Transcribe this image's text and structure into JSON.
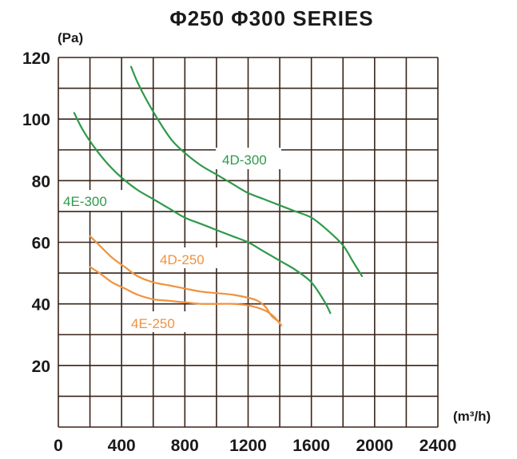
{
  "chart_data": {
    "type": "line",
    "title": "Φ250  Φ300  SERIES",
    "ylabel": "(Pa)",
    "xlabel": "(m³/h)",
    "xlim": [
      0,
      2400
    ],
    "ylim": [
      0,
      120
    ],
    "x_ticks": [
      "0",
      "400",
      "800",
      "1200",
      "1600",
      "2000",
      "2400"
    ],
    "y_ticks": [
      "20",
      "40",
      "60",
      "80",
      "100",
      "120"
    ],
    "grid": true,
    "series": [
      {
        "name": "4D-300",
        "color": "#2e9a4a",
        "points": [
          [
            460,
            117
          ],
          [
            500,
            112
          ],
          [
            560,
            106
          ],
          [
            640,
            99
          ],
          [
            720,
            93
          ],
          [
            800,
            89
          ],
          [
            900,
            85
          ],
          [
            1000,
            82
          ],
          [
            1100,
            79
          ],
          [
            1200,
            76
          ],
          [
            1300,
            74
          ],
          [
            1400,
            72
          ],
          [
            1500,
            70
          ],
          [
            1600,
            68
          ],
          [
            1700,
            64
          ],
          [
            1800,
            59
          ],
          [
            1860,
            54
          ],
          [
            1920,
            49
          ]
        ]
      },
      {
        "name": "4E-300",
        "color": "#2e9a4a",
        "points": [
          [
            100,
            102
          ],
          [
            160,
            96
          ],
          [
            240,
            90
          ],
          [
            320,
            85
          ],
          [
            400,
            81
          ],
          [
            500,
            77
          ],
          [
            600,
            74
          ],
          [
            700,
            71
          ],
          [
            800,
            68
          ],
          [
            900,
            66
          ],
          [
            1000,
            64
          ],
          [
            1100,
            62
          ],
          [
            1200,
            60
          ],
          [
            1300,
            57
          ],
          [
            1400,
            54
          ],
          [
            1500,
            51
          ],
          [
            1600,
            47
          ],
          [
            1680,
            41
          ],
          [
            1720,
            37
          ]
        ]
      },
      {
        "name": "4D-250",
        "color": "#f0923e",
        "points": [
          [
            200,
            62
          ],
          [
            260,
            59
          ],
          [
            340,
            55
          ],
          [
            420,
            52
          ],
          [
            500,
            49
          ],
          [
            600,
            47
          ],
          [
            700,
            46
          ],
          [
            800,
            45
          ],
          [
            900,
            44
          ],
          [
            1000,
            43.5
          ],
          [
            1100,
            43
          ],
          [
            1200,
            42
          ],
          [
            1260,
            41
          ],
          [
            1310,
            39
          ],
          [
            1350,
            36
          ],
          [
            1400,
            34
          ]
        ]
      },
      {
        "name": "4E-250",
        "color": "#f0923e",
        "points": [
          [
            200,
            52
          ],
          [
            260,
            50
          ],
          [
            340,
            47
          ],
          [
            420,
            45
          ],
          [
            500,
            43
          ],
          [
            600,
            41.5
          ],
          [
            700,
            41
          ],
          [
            800,
            40.5
          ],
          [
            900,
            40
          ],
          [
            1000,
            40
          ],
          [
            1100,
            40
          ],
          [
            1200,
            39.5
          ],
          [
            1300,
            38
          ],
          [
            1360,
            36
          ],
          [
            1410,
            33
          ]
        ]
      }
    ],
    "labels": [
      {
        "text": "4D-300",
        "series": 0
      },
      {
        "text": "4E-300",
        "series": 1
      },
      {
        "text": "4D-250",
        "series": 2
      },
      {
        "text": "4E-250",
        "series": 3
      }
    ]
  }
}
